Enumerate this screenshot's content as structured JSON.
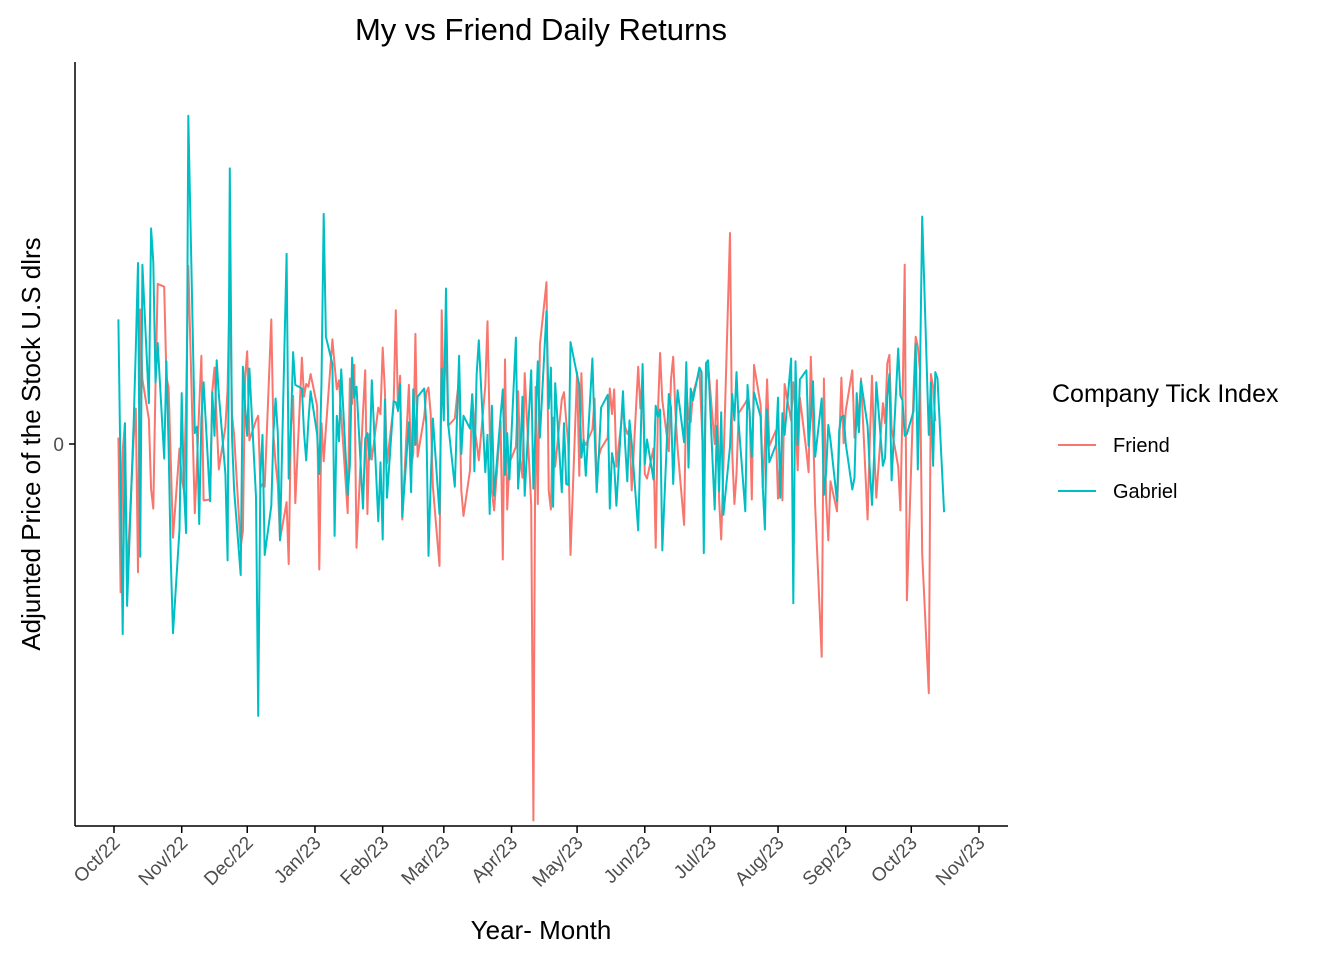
{
  "chart_data": {
    "type": "line",
    "title": "My vs Friend Daily Returns",
    "xlabel": "Year- Month",
    "ylabel": "Adjunted Price of the Stock U.S dlrs",
    "x_tick_labels": [
      "Oct/22",
      "Nov/22",
      "Dec/22",
      "Jan/23",
      "Feb/23",
      "Mar/23",
      "Apr/23",
      "May/23",
      "Jun/23",
      "Jul/23",
      "Aug/23",
      "Sep/23",
      "Oct/23",
      "Nov/23"
    ],
    "y_tick_labels": [
      "0"
    ],
    "y_tick_values": [
      0
    ],
    "ylim": [
      -0.042,
      0.042
    ],
    "grid": false,
    "legend": {
      "title": "Company Tick Index",
      "position": "right"
    },
    "start_date": "2022-10-03",
    "series": [
      {
        "name": "Friend",
        "color": "#F8766D",
        "values": [
          0.0007,
          -0.0163,
          -0.0007,
          0.0022,
          -0.0146,
          0.0007,
          0.0039,
          -0.0141,
          0.0148,
          0.0071,
          0.0027,
          -0.005,
          -0.0071,
          0.0064,
          0.0176,
          0.0173,
          0.0074,
          0.0062,
          -0.0019,
          -0.0103,
          -0.0005,
          -0.0038,
          -0.0051,
          0.0048,
          0.0196,
          -0.0076,
          -0.0021,
          0.0041,
          0.0097,
          -0.0062,
          -0.0061,
          0.0058,
          0.0084,
          0.0025,
          -0.0028,
          0.0019,
          0.0061,
          0.0187,
          0.0032,
          0.001,
          -0.0113,
          -0.0096,
          0.0074,
          0.0102,
          0.0004,
          0.0026,
          0.0031,
          -0.0048,
          -0.0044,
          -0.0047,
          0.0137,
          0.0009,
          -0.0021,
          -0.0044,
          -0.0105,
          -0.0064,
          -0.0132,
          0.0018,
          0.0053,
          -0.0065,
          0.0095,
          0.0052,
          0.0066,
          0.0063,
          0.0077,
          0.0042,
          -0.0138,
          0.0023,
          -0.0019,
          0.0017,
          0.0115,
          0.0087,
          0.006,
          0.007,
          0.0032,
          -0.0076,
          0.0072,
          0.0044,
          0.0087,
          -0.0114,
          0.0035,
          0.0081,
          -0.0077,
          0.0011,
          -0.0017,
          0.004,
          0.0033,
          0.0106,
          0.0058,
          -0.0021,
          0.0042,
          0.0147,
          0.0036,
          0.0075,
          -0.0083,
          0.0065,
          -0.0026,
          -0.001,
          0.0121,
          -0.0014,
          0.003,
          0.0057,
          0.0062,
          0.0033,
          -0.0047,
          -0.0134,
          0.0147,
          0.0041,
          0.0121,
          0.002,
          0.0028,
          0.0051,
          0.0071,
          -0.0051,
          -0.0079,
          -0.0029,
          0.0055,
          0.0018,
          0.0002,
          -0.0018,
          0.0064,
          0.0135,
          0.0016,
          -0.0052,
          -0.0073,
          0.0025,
          -0.0127,
          0.0093,
          -0.0072,
          -0.0021,
          -0.0003,
          0.0058,
          -0.0018,
          -0.0037,
          0.0078,
          -0.0067,
          -0.0414,
          0.0063,
          -0.0066,
          0.0109,
          0.0178,
          -0.0051,
          -0.0072,
          0.0029,
          -0.0025,
          0.0049,
          0.0057,
          0.0026,
          -0.0001,
          -0.0122,
          0.0079,
          -0.0035,
          0.0078,
          0.0004,
          -0.0001,
          0.0016,
          0.005,
          -0.0041,
          -0.0013,
          -0.0005,
          0.0007,
          0.0061,
          0.0033,
          0.006,
          -0.0025,
          0.004,
          0.0019,
          0.0011,
          0.0017,
          -0.0051,
          0.0085,
          0.0039,
          0.0075,
          -0.0033,
          -0.0038,
          -0.0005,
          -0.0114,
          0.0034,
          0.01,
          0.0048,
          -0.0008,
          0.0071,
          0.0096,
          0.0036,
          -0.0005,
          -0.0089,
          0.0064,
          0.003,
          0.0024,
          0.0055,
          0.008,
          0.0026,
          -0.0031,
          0.0067,
          0.0087,
          0.0,
          0.007,
          -0.0061,
          -0.0105,
          -0.0025,
          0.0232,
          -0.0009,
          -0.0066,
          -0.0033,
          0.0034,
          0.0045,
          0.005,
          0.0036,
          -0.0061,
          0.0087,
          0.0043,
          -0.0048,
          0.0002,
          0.0071,
          -0.0002,
          0.0015,
          -0.006,
          -0.0011,
          -0.0062,
          0.0066,
          0.0026,
          0.0068,
          0.0031,
          -0.0029,
          0.0051,
          -0.0008,
          -0.0031,
          0.0096,
          0.0022,
          -0.0069,
          -0.0234,
          0.0072,
          -0.0059,
          -0.0106,
          -0.0041,
          -0.0074,
          -0.0001,
          0.0073,
          0.0001,
          0.0037,
          0.0081,
          0.0007,
          0.0022,
          0.0031,
          0.0072,
          -0.0083,
          0.0003,
          0.0075,
          -0.0006,
          -0.0059,
          0.0045,
          0.0023,
          0.0089,
          0.0098,
          0.0017,
          -0.0025,
          -0.0073,
          0.0042,
          0.0197,
          -0.0172,
          0.0056,
          0.0118,
          0.0107,
          0.008,
          -0.0121,
          -0.0274,
          0.0077,
          0.0063,
          0.0025
        ]
      },
      {
        "name": "Gabriel",
        "color": "#00BFC4",
        "values": [
          0.0137,
          -0.0038,
          -0.0209,
          0.0023,
          -0.0178,
          0.0024,
          0.0105,
          0.0199,
          -0.0124,
          0.0197,
          0.0045,
          0.0237,
          0.02,
          0.0068,
          0.0111,
          -0.0016,
          0.0091,
          -0.0003,
          -0.0128,
          -0.0208,
          -0.0094,
          0.0056,
          -0.0049,
          -0.0098,
          0.0361,
          0.0012,
          0.0019,
          -0.0088,
          0.0028,
          0.0068,
          -0.0063,
          0.0057,
          0.0009,
          0.0092,
          0.0055,
          -0.0033,
          -0.0128,
          0.0303,
          0.0008,
          -0.005,
          -0.0144,
          0.0085,
          0.0041,
          0.0009,
          0.0083,
          -0.0058,
          -0.0299,
          -0.0034,
          0.001,
          -0.0122,
          -0.0068,
          0.0014,
          0.005,
          0.0012,
          -0.0106,
          0.0209,
          -0.0038,
          0.0018,
          0.0101,
          0.0065,
          0.0061,
          0.0013,
          -0.0018,
          0.0025,
          0.0058,
          0.0011,
          -0.0033,
          0.0068,
          0.0253,
          0.0118,
          0.0088,
          -0.0101,
          0.0031,
          0.0003,
          0.0082,
          -0.0056,
          -0.0023,
          0.0095,
          0.0051,
          0.0063,
          -0.0071,
          0.0006,
          0.0012,
          -0.0017,
          0.007,
          -0.0085,
          -0.002,
          -0.0105,
          0.0049,
          -0.0059,
          0.0047,
          0.0046,
          0.0037,
          0.0066,
          -0.008,
          0.0024,
          -0.0053,
          0.006,
          -0.0001,
          0.0052,
          0.0061,
          0.002,
          -0.0123,
          -0.0041,
          0.0028,
          -0.0077,
          0.0083,
          0.0026,
          0.0171,
          0.0022,
          -0.0047,
          0.0025,
          0.0097,
          -0.0011,
          0.0031,
          0.0017,
          0.0054,
          -0.003,
          0.0076,
          0.0114,
          -0.0031,
          0.001,
          -0.0077,
          0.0042,
          -0.0057,
          0.0031,
          0.006,
          -0.0034,
          0.0012,
          -0.0039,
          0.0117,
          -0.0049,
          -0.0013,
          0.0052,
          -0.0057,
          0.0081,
          -0.0049,
          0.0021,
          0.0091,
          0.0007,
          0.0146,
          0.0039,
          0.0084,
          -0.0069,
          0.0067,
          -0.0053,
          0.0023,
          -0.0044,
          -0.0045,
          0.0112,
          0.0076,
          0.0065,
          -0.0015,
          0.0005,
          -0.0035,
          0.0094,
          0.0012,
          -0.0053,
          -0.0011,
          0.004,
          0.0054,
          -0.0071,
          -0.001,
          -0.0023,
          -0.0068,
          0.0058,
          0.0,
          -0.0041,
          0.0026,
          0.0001,
          -0.0095,
          -0.0006,
          0.0088,
          -0.0022,
          0.0005,
          -0.0039,
          0.0042,
          0.003,
          0.0038,
          -0.0117,
          0.0055,
          0.004,
          -0.0044,
          0.0017,
          0.0059,
          0.0002,
          0.009,
          -0.0026,
          0.0061,
          0.0048,
          0.0084,
          0.0079,
          -0.012,
          0.0089,
          0.0092,
          -0.0072,
          0.002,
          -0.0052,
          0.0035,
          -0.0078,
          -0.0003,
          0.0055,
          0.0026,
          0.0079,
          0.0022,
          -0.0074,
          0.0065,
          0.0035,
          -0.0014,
          0.0057,
          0.003,
          -0.0048,
          -0.0094,
          0.0038,
          -0.002,
          -0.0001,
          0.0051,
          -0.0059,
          0.0034,
          0.001,
          0.0094,
          -0.0175,
          0.0091,
          -0.0001,
          0.0071,
          0.0081,
          -0.0002,
          0.003,
          0.0069,
          -0.0014,
          0.005,
          -0.0056,
          -0.0031,
          0.0021,
          0.0004,
          -0.0063,
          0.0015,
          0.003,
          0.0031,
          0.0,
          -0.005,
          -0.0037,
          0.0056,
          0.0013,
          0.0069,
          0.002,
          -0.0028,
          -0.0067,
          -0.0011,
          0.0068,
          -0.0024,
          -0.0015,
          0.0052,
          0.0077,
          -0.004,
          0.0105,
          0.0053,
          0.0048,
          0.0009,
          0.0011,
          0.0036,
          0.011,
          -0.0028,
          0.0079,
          0.025,
          0.001,
          0.0068,
          -0.0024,
          0.0079,
          0.0072,
          -0.0075
        ]
      }
    ]
  }
}
